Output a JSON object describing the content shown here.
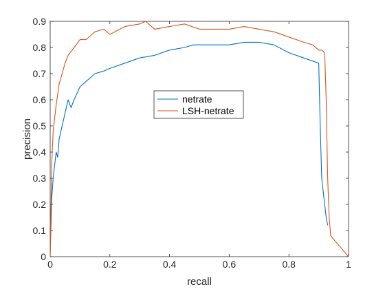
{
  "chart_data": {
    "type": "line",
    "title": "",
    "xlabel": "recall",
    "ylabel": "precision",
    "xlim": [
      0,
      1
    ],
    "ylim": [
      0,
      0.9
    ],
    "xticks": [
      "0",
      "0.2",
      "0.4",
      "0.6",
      "0.8",
      "1"
    ],
    "yticks": [
      "0",
      "0.1",
      "0.2",
      "0.3",
      "0.4",
      "0.5",
      "0.6",
      "0.7",
      "0.8",
      "0.9"
    ],
    "grid": false,
    "legend_position": "center",
    "series": [
      {
        "name": "netrate",
        "color": "#0072bd",
        "x": [
          0,
          0.005,
          0.01,
          0.015,
          0.02,
          0.025,
          0.03,
          0.04,
          0.05,
          0.06,
          0.07,
          0.08,
          0.1,
          0.12,
          0.15,
          0.18,
          0.2,
          0.25,
          0.3,
          0.35,
          0.4,
          0.45,
          0.48,
          0.5,
          0.55,
          0.6,
          0.65,
          0.7,
          0.75,
          0.8,
          0.85,
          0.9,
          0.905,
          0.91,
          0.915,
          0.92,
          0.925,
          0.93
        ],
        "y": [
          0,
          0.22,
          0.3,
          0.35,
          0.4,
          0.38,
          0.45,
          0.5,
          0.55,
          0.6,
          0.57,
          0.6,
          0.65,
          0.67,
          0.7,
          0.71,
          0.72,
          0.74,
          0.76,
          0.77,
          0.79,
          0.8,
          0.81,
          0.81,
          0.81,
          0.81,
          0.82,
          0.82,
          0.81,
          0.78,
          0.76,
          0.74,
          0.5,
          0.3,
          0.25,
          0.2,
          0.15,
          0.12
        ]
      },
      {
        "name": "LSH-netrate",
        "color": "#d95319",
        "x": [
          0,
          0.005,
          0.01,
          0.02,
          0.03,
          0.04,
          0.05,
          0.06,
          0.08,
          0.1,
          0.12,
          0.15,
          0.18,
          0.2,
          0.25,
          0.3,
          0.32,
          0.35,
          0.4,
          0.45,
          0.5,
          0.55,
          0.6,
          0.65,
          0.7,
          0.75,
          0.8,
          0.85,
          0.88,
          0.9,
          0.91,
          0.92,
          0.925,
          0.93,
          0.935,
          0.94,
          0.97,
          1.0
        ],
        "y": [
          0,
          0.35,
          0.48,
          0.58,
          0.66,
          0.7,
          0.74,
          0.77,
          0.8,
          0.83,
          0.83,
          0.86,
          0.87,
          0.85,
          0.88,
          0.89,
          0.9,
          0.87,
          0.88,
          0.89,
          0.87,
          0.87,
          0.87,
          0.88,
          0.87,
          0.86,
          0.84,
          0.82,
          0.81,
          0.79,
          0.79,
          0.78,
          0.6,
          0.3,
          0.15,
          0.08,
          0.04,
          0.0
        ]
      }
    ]
  }
}
